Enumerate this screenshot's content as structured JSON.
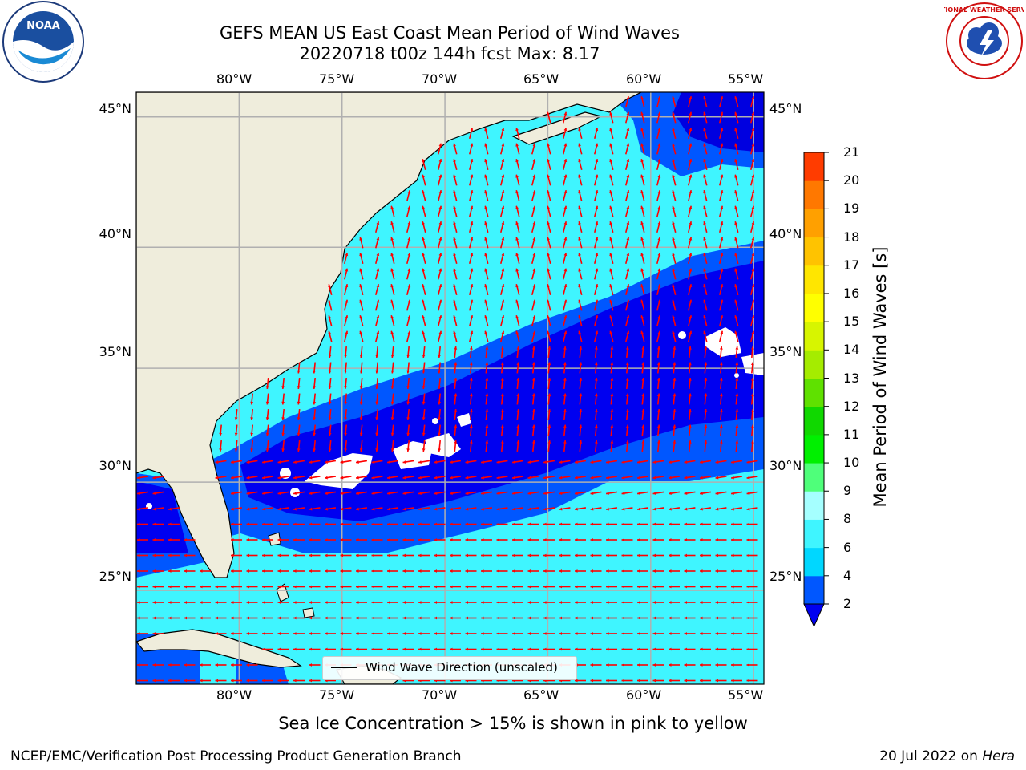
{
  "title": {
    "line1": "GEFS MEAN US East Coast Mean Period of Wind Waves",
    "line2": "20220718 t00z 144h fcst   Max: 8.17"
  },
  "logos": {
    "left": {
      "name": "NOAA",
      "text": "NOAA"
    },
    "right": {
      "name": "NATIONAL WEATHER SERVICE",
      "text": "NATIONAL WEATHER SERVICE"
    }
  },
  "map": {
    "lon_ticks": [
      "80°W",
      "75°W",
      "70°W",
      "65°W",
      "60°W",
      "55°W"
    ],
    "lat_ticks": [
      "45°N",
      "40°N",
      "35°N",
      "30°N",
      "25°N"
    ],
    "lon_values": [
      -80,
      -75,
      -70,
      -65,
      -60,
      -55
    ],
    "lat_values": [
      45,
      40,
      35,
      30,
      25
    ],
    "lon_range": [
      -85,
      -54.5
    ],
    "lat_range": [
      20.5,
      45.9
    ],
    "land_color": "#efeddc",
    "ocean_colors": {
      "band_2_4": "#0050ff",
      "band_4_6": "#00e5ff",
      "band_6_8": "#3ff5ff",
      "below_2": "#0000e0"
    },
    "arrow_color": "#ff0000",
    "grid_color": "#b0b0b0"
  },
  "colorbar": {
    "title": "Mean Period of Wind Waves [s]",
    "levels": [
      "2",
      "4",
      "6",
      "8",
      "9",
      "10",
      "11",
      "12",
      "13",
      "14",
      "15",
      "16",
      "17",
      "18",
      "19",
      "20",
      "21"
    ],
    "colors": [
      "#0057ff",
      "#00d7ff",
      "#3ff5ff",
      "#a5ffff",
      "#4fff7a",
      "#00f000",
      "#10d800",
      "#5fe100",
      "#a5ec00",
      "#d7f500",
      "#ffff00",
      "#ffe600",
      "#ffc300",
      "#ffa000",
      "#ff7800",
      "#ff3c00"
    ],
    "underflow_color": "#0000f0"
  },
  "legend": {
    "label": "Wind Wave Direction (unscaled)"
  },
  "caption": "Sea Ice Concentration > 15% is shown in pink to yellow",
  "footer": {
    "left": "NCEP/EMC/Verification Post Processing Product Generation Branch",
    "date": "20 Jul 2022 on ",
    "machine": "Hera"
  }
}
